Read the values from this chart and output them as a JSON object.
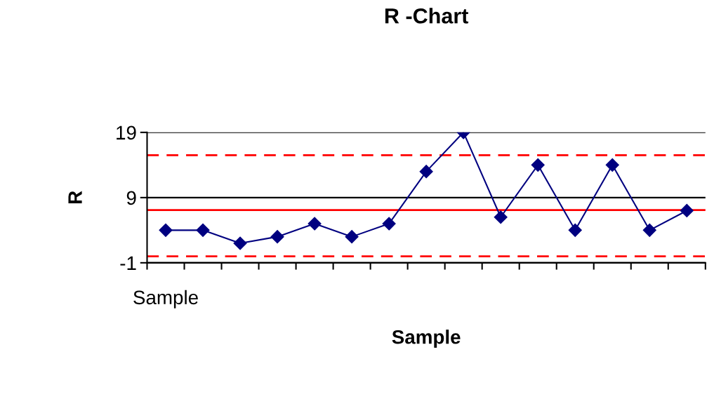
{
  "chart_data": {
    "type": "line",
    "title": "R -Chart",
    "xlabel": "Sample",
    "ylabel": "R",
    "categories": [
      "Sample",
      null,
      null,
      null,
      null,
      null,
      null,
      null,
      null,
      null,
      null,
      null,
      null,
      null,
      null
    ],
    "series": [
      {
        "color": "#000080",
        "values": [
          4,
          4,
          2,
          3,
          5,
          3,
          5,
          13,
          19,
          6,
          14,
          4,
          14,
          4,
          7
        ]
      }
    ],
    "ylim": [
      -1,
      19
    ],
    "yticks": [
      -1,
      9,
      19
    ],
    "grid": "y",
    "marker": "diamond",
    "line_style": "solid",
    "ref_lines": [
      {
        "axis": "y",
        "value": 15.5,
        "color": "#ff0000",
        "line_style": "dashed"
      },
      {
        "axis": "y",
        "value": 7.1,
        "color": "#ff0000",
        "line_style": "solid"
      },
      {
        "axis": "y",
        "value": 0,
        "color": "#ff0000",
        "line_style": "dashed"
      }
    ]
  }
}
